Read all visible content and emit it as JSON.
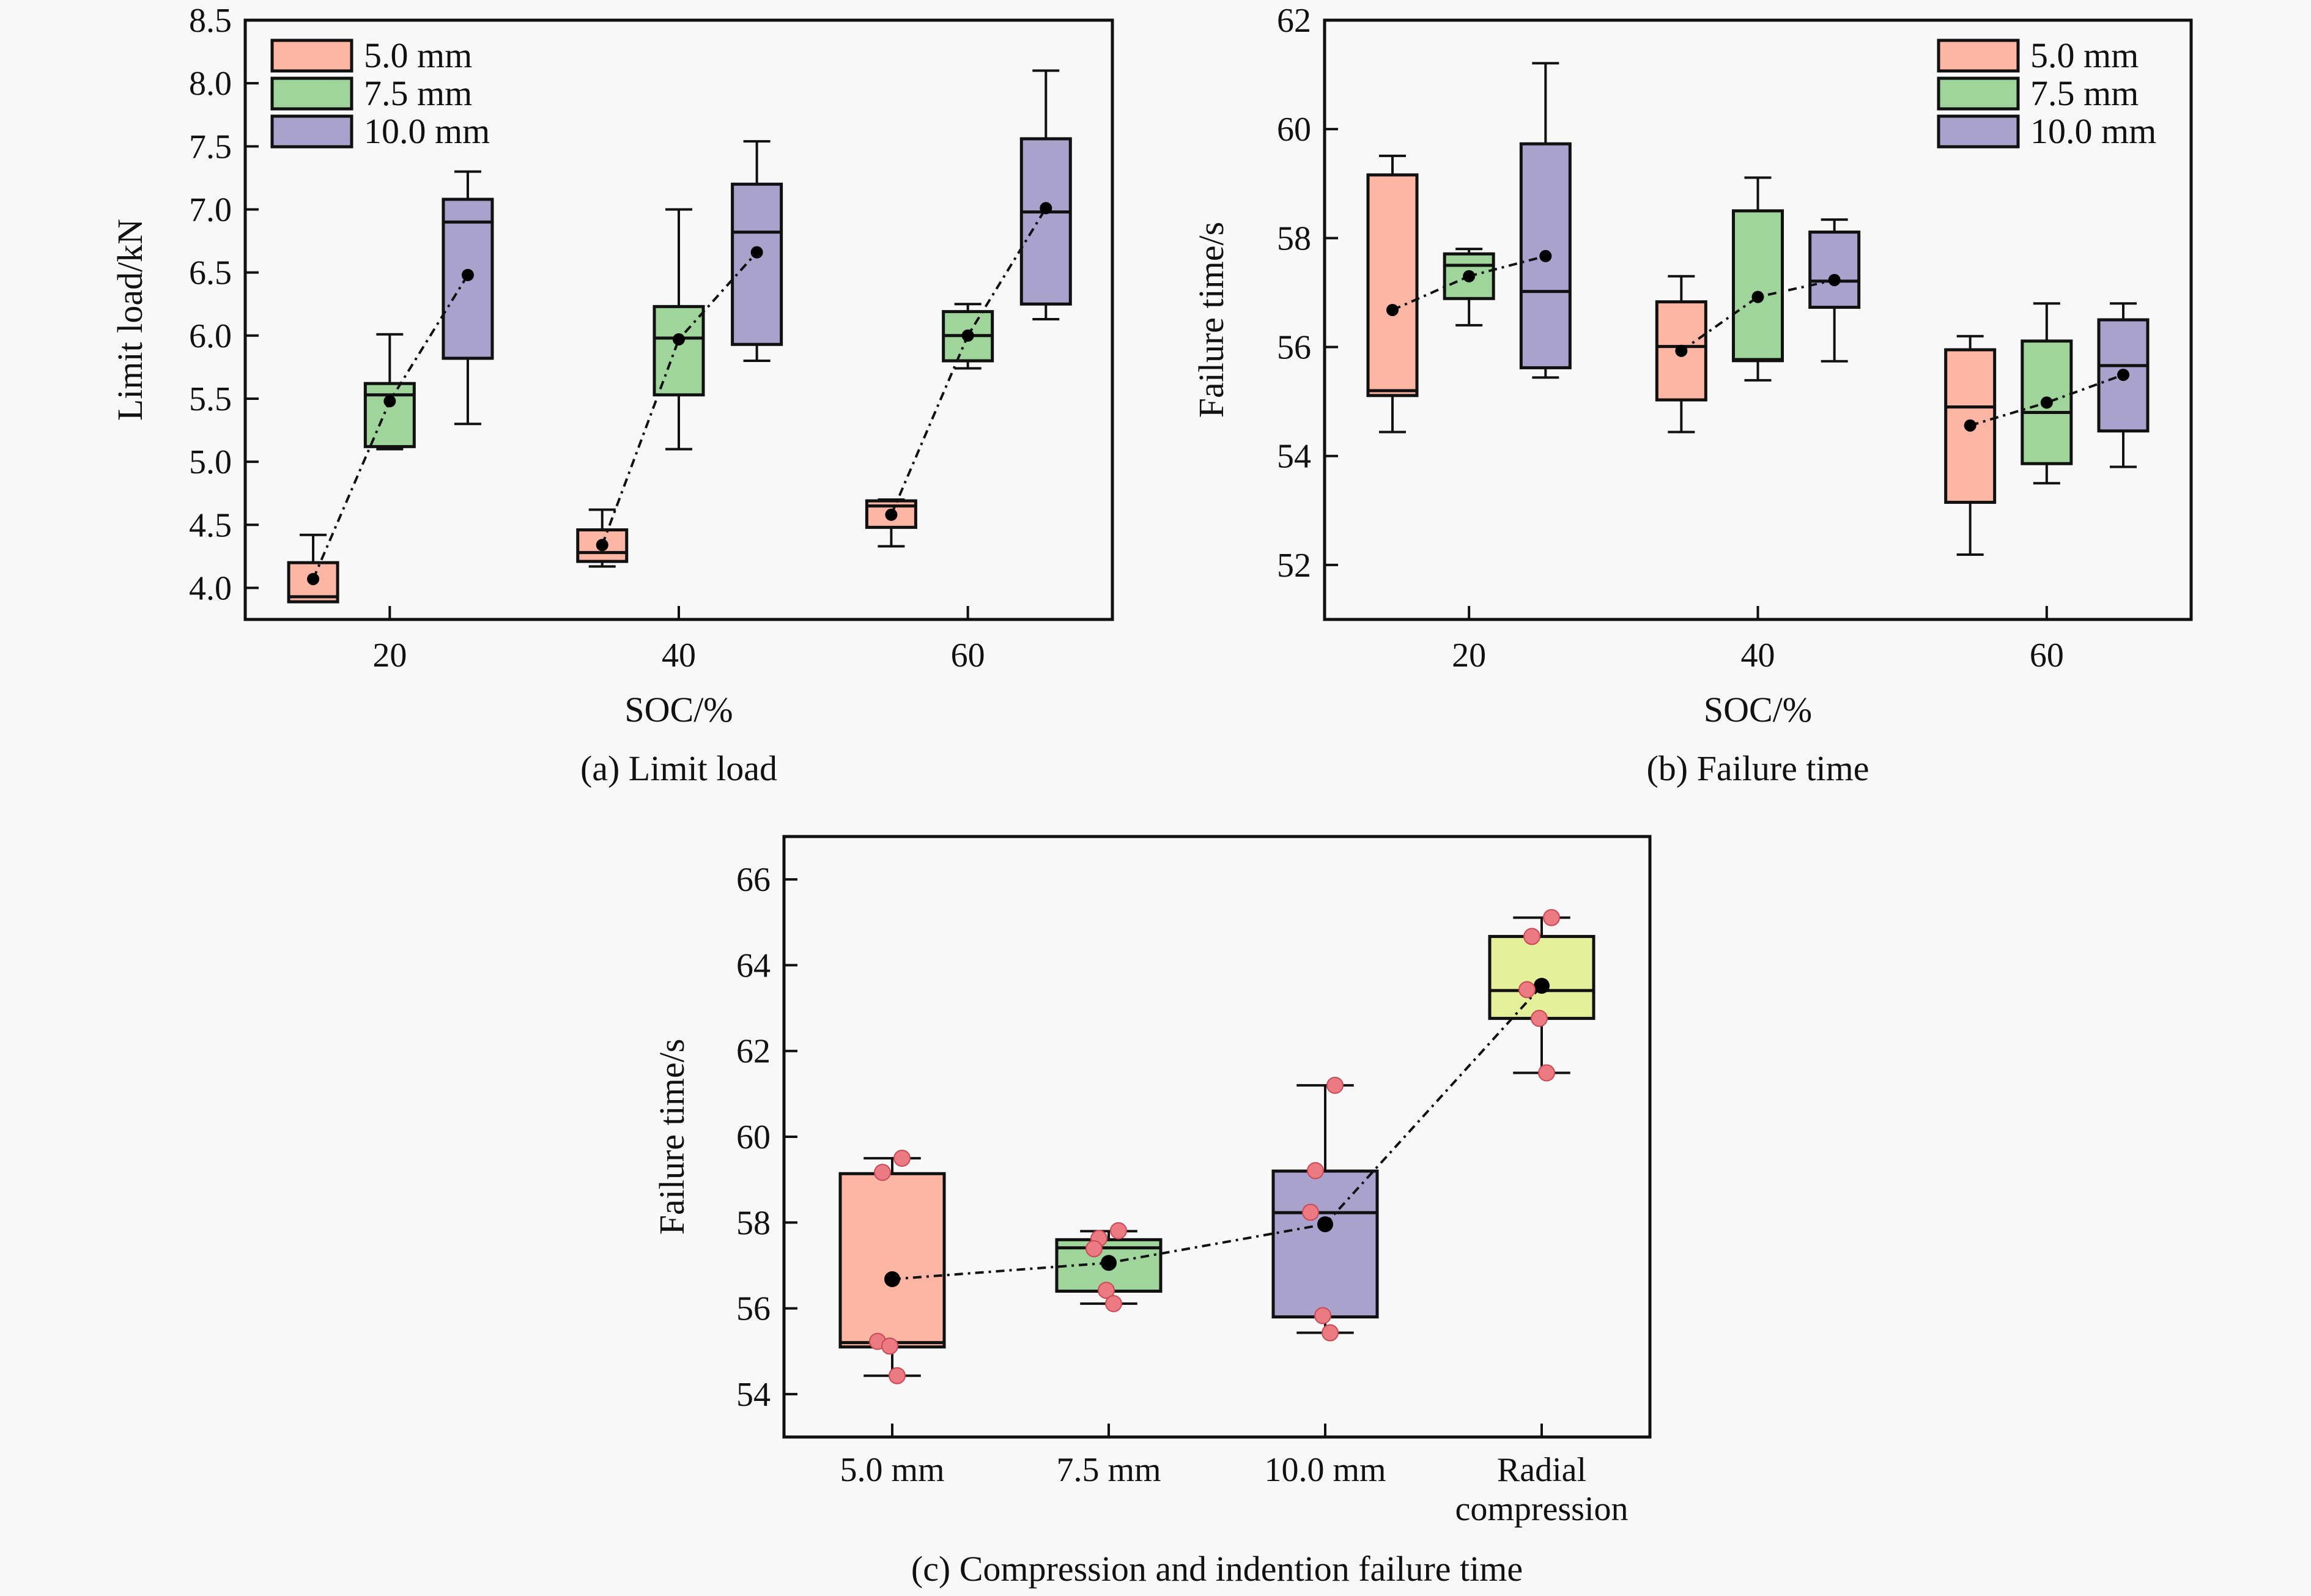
{
  "figure": {
    "panels": [
      "a",
      "b",
      "c"
    ]
  },
  "colors": {
    "5.0 mm": "#FDB6A4",
    "7.5 mm": "#9FD49B",
    "10.0 mm": "#A9A2CD",
    "Radial compression": "#E5F09A",
    "points": "#EC7A83",
    "mean": "#000000"
  },
  "chart_data": [
    {
      "id": "a",
      "type": "box",
      "caption": "(a) Limit load",
      "xlabel": "SOC/%",
      "ylabel": "Limit load/kN",
      "xlim": [
        10,
        70
      ],
      "ylim": [
        3.75,
        8.5
      ],
      "xticks": [
        20,
        40,
        60
      ],
      "xtick_labels": [
        "20",
        "40",
        "60"
      ],
      "yticks": [
        4.0,
        4.5,
        5.0,
        5.5,
        6.0,
        6.5,
        7.0,
        7.5,
        8.0,
        8.5
      ],
      "ytick_labels": [
        "4.0",
        "4.5",
        "5.0",
        "5.5",
        "6.0",
        "6.5",
        "7.0",
        "7.5",
        "8.0",
        "8.5"
      ],
      "legend": {
        "placement": "top-left",
        "entries": [
          "5.0 mm",
          "7.5 mm",
          "10.0 mm"
        ]
      },
      "series_offsets": {
        "5.0 mm": -5.3,
        "7.5 mm": 0,
        "10.0 mm": 5.4
      },
      "groups": [
        {
          "x": 20,
          "boxes": [
            {
              "series": "5.0 mm",
              "whislo": 3.89,
              "q1": 3.89,
              "med": 3.93,
              "q3": 4.2,
              "whishi": 4.42,
              "mean": 4.07
            },
            {
              "series": "7.5 mm",
              "whislo": 5.1,
              "q1": 5.12,
              "med": 5.53,
              "q3": 5.62,
              "whishi": 6.01,
              "mean": 5.48
            },
            {
              "series": "10.0 mm",
              "whislo": 5.3,
              "q1": 5.82,
              "med": 6.9,
              "q3": 7.08,
              "whishi": 7.3,
              "mean": 6.48
            }
          ]
        },
        {
          "x": 40,
          "boxes": [
            {
              "series": "5.0 mm",
              "whislo": 4.17,
              "q1": 4.21,
              "med": 4.28,
              "q3": 4.46,
              "whishi": 4.62,
              "mean": 4.34
            },
            {
              "series": "7.5 mm",
              "whislo": 5.1,
              "q1": 5.53,
              "med": 5.98,
              "q3": 6.23,
              "whishi": 7.0,
              "mean": 5.97
            },
            {
              "series": "10.0 mm",
              "whislo": 5.8,
              "q1": 5.93,
              "med": 6.82,
              "q3": 7.2,
              "whishi": 7.54,
              "mean": 6.66
            }
          ]
        },
        {
          "x": 60,
          "boxes": [
            {
              "series": "5.0 mm",
              "whislo": 4.33,
              "q1": 4.48,
              "med": 4.65,
              "q3": 4.69,
              "whishi": 4.7,
              "mean": 4.58
            },
            {
              "series": "7.5 mm",
              "whislo": 5.74,
              "q1": 5.8,
              "med": 6.0,
              "q3": 6.19,
              "whishi": 6.25,
              "mean": 6.0
            },
            {
              "series": "10.0 mm",
              "whislo": 6.13,
              "q1": 6.25,
              "med": 6.98,
              "q3": 7.56,
              "whishi": 8.1,
              "mean": 7.01
            }
          ]
        }
      ]
    },
    {
      "id": "b",
      "type": "box",
      "caption": "(b) Failure time",
      "xlabel": "SOC/%",
      "ylabel": "Failure time/s",
      "xlim": [
        10,
        70
      ],
      "ylim": [
        51,
        62
      ],
      "xticks": [
        20,
        40,
        60
      ],
      "xtick_labels": [
        "20",
        "40",
        "60"
      ],
      "yticks": [
        52,
        54,
        56,
        58,
        60,
        62
      ],
      "ytick_labels": [
        "52",
        "54",
        "56",
        "58",
        "60",
        "62"
      ],
      "legend": {
        "placement": "top-right",
        "entries": [
          "5.0 mm",
          "7.5 mm",
          "10.0 mm"
        ]
      },
      "series_offsets": {
        "5.0 mm": -5.3,
        "7.5 mm": 0,
        "10.0 mm": 5.3
      },
      "groups": [
        {
          "x": 20,
          "boxes": [
            {
              "series": "5.0 mm",
              "whislo": 54.44,
              "q1": 55.11,
              "med": 55.2,
              "q3": 59.16,
              "whishi": 59.51,
              "mean": 56.68
            },
            {
              "series": "7.5 mm",
              "whislo": 56.4,
              "q1": 56.89,
              "med": 57.5,
              "q3": 57.71,
              "whishi": 57.8,
              "mean": 57.3
            },
            {
              "series": "10.0 mm",
              "whislo": 55.44,
              "q1": 55.62,
              "med": 57.02,
              "q3": 59.73,
              "whishi": 61.21,
              "mean": 57.67
            }
          ]
        },
        {
          "x": 40,
          "boxes": [
            {
              "series": "5.0 mm",
              "whislo": 54.44,
              "q1": 55.03,
              "med": 56.01,
              "q3": 56.83,
              "whishi": 57.3,
              "mean": 55.93
            },
            {
              "series": "7.5 mm",
              "whislo": 55.39,
              "q1": 55.75,
              "med": 55.77,
              "q3": 58.5,
              "whishi": 59.11,
              "mean": 56.92
            },
            {
              "series": "10.0 mm",
              "whislo": 55.74,
              "q1": 56.73,
              "med": 57.21,
              "q3": 58.11,
              "whishi": 58.34,
              "mean": 57.23
            }
          ]
        },
        {
          "x": 60,
          "boxes": [
            {
              "series": "5.0 mm",
              "whislo": 52.19,
              "q1": 53.15,
              "med": 54.9,
              "q3": 55.95,
              "whishi": 56.2,
              "mean": 54.56
            },
            {
              "series": "7.5 mm",
              "whislo": 53.5,
              "q1": 53.86,
              "med": 54.8,
              "q3": 56.11,
              "whishi": 56.8,
              "mean": 54.98
            },
            {
              "series": "10.0 mm",
              "whislo": 53.8,
              "q1": 54.46,
              "med": 55.66,
              "q3": 56.5,
              "whishi": 56.8,
              "mean": 55.49
            }
          ]
        }
      ]
    },
    {
      "id": "c",
      "type": "box",
      "caption": "(c) Compression and indention failure time",
      "xlabel": "",
      "ylabel": "Failure time/s",
      "xlim": [
        0.5,
        4.5
      ],
      "ylim": [
        53,
        67
      ],
      "yticks": [
        54,
        56,
        58,
        60,
        62,
        64,
        66
      ],
      "ytick_labels": [
        "54",
        "56",
        "58",
        "60",
        "62",
        "64",
        "66"
      ],
      "categories": [
        {
          "label_lines": [
            "5.0 mm"
          ],
          "series": "5.0 mm"
        },
        {
          "label_lines": [
            "7.5 mm"
          ],
          "series": "7.5 mm"
        },
        {
          "label_lines": [
            "10.0 mm"
          ],
          "series": "10.0 mm"
        },
        {
          "label_lines": [
            "Radial",
            "compression"
          ],
          "series": "Radial compression"
        }
      ],
      "boxes": [
        {
          "series": "5.0 mm",
          "whislo": 54.43,
          "q1": 55.1,
          "med": 55.2,
          "q3": 59.14,
          "whishi": 59.5,
          "mean": 56.68,
          "points": [
            59.5,
            59.17,
            55.23,
            55.12,
            54.43
          ]
        },
        {
          "series": "7.5 mm",
          "whislo": 56.11,
          "q1": 56.4,
          "med": 57.41,
          "q3": 57.6,
          "whishi": 57.8,
          "mean": 57.06,
          "points": [
            57.81,
            57.63,
            57.39,
            56.42,
            56.11
          ]
        },
        {
          "series": "10.0 mm",
          "whislo": 55.43,
          "q1": 55.8,
          "med": 58.23,
          "q3": 59.2,
          "whishi": 61.2,
          "mean": 57.96,
          "points": [
            61.2,
            59.21,
            58.24,
            55.83,
            55.43
          ]
        },
        {
          "series": "Radial compression",
          "whislo": 61.49,
          "q1": 62.76,
          "med": 63.41,
          "q3": 64.67,
          "whishi": 65.11,
          "mean": 63.52,
          "points": [
            65.11,
            64.67,
            63.43,
            62.76,
            61.49
          ]
        }
      ]
    }
  ]
}
